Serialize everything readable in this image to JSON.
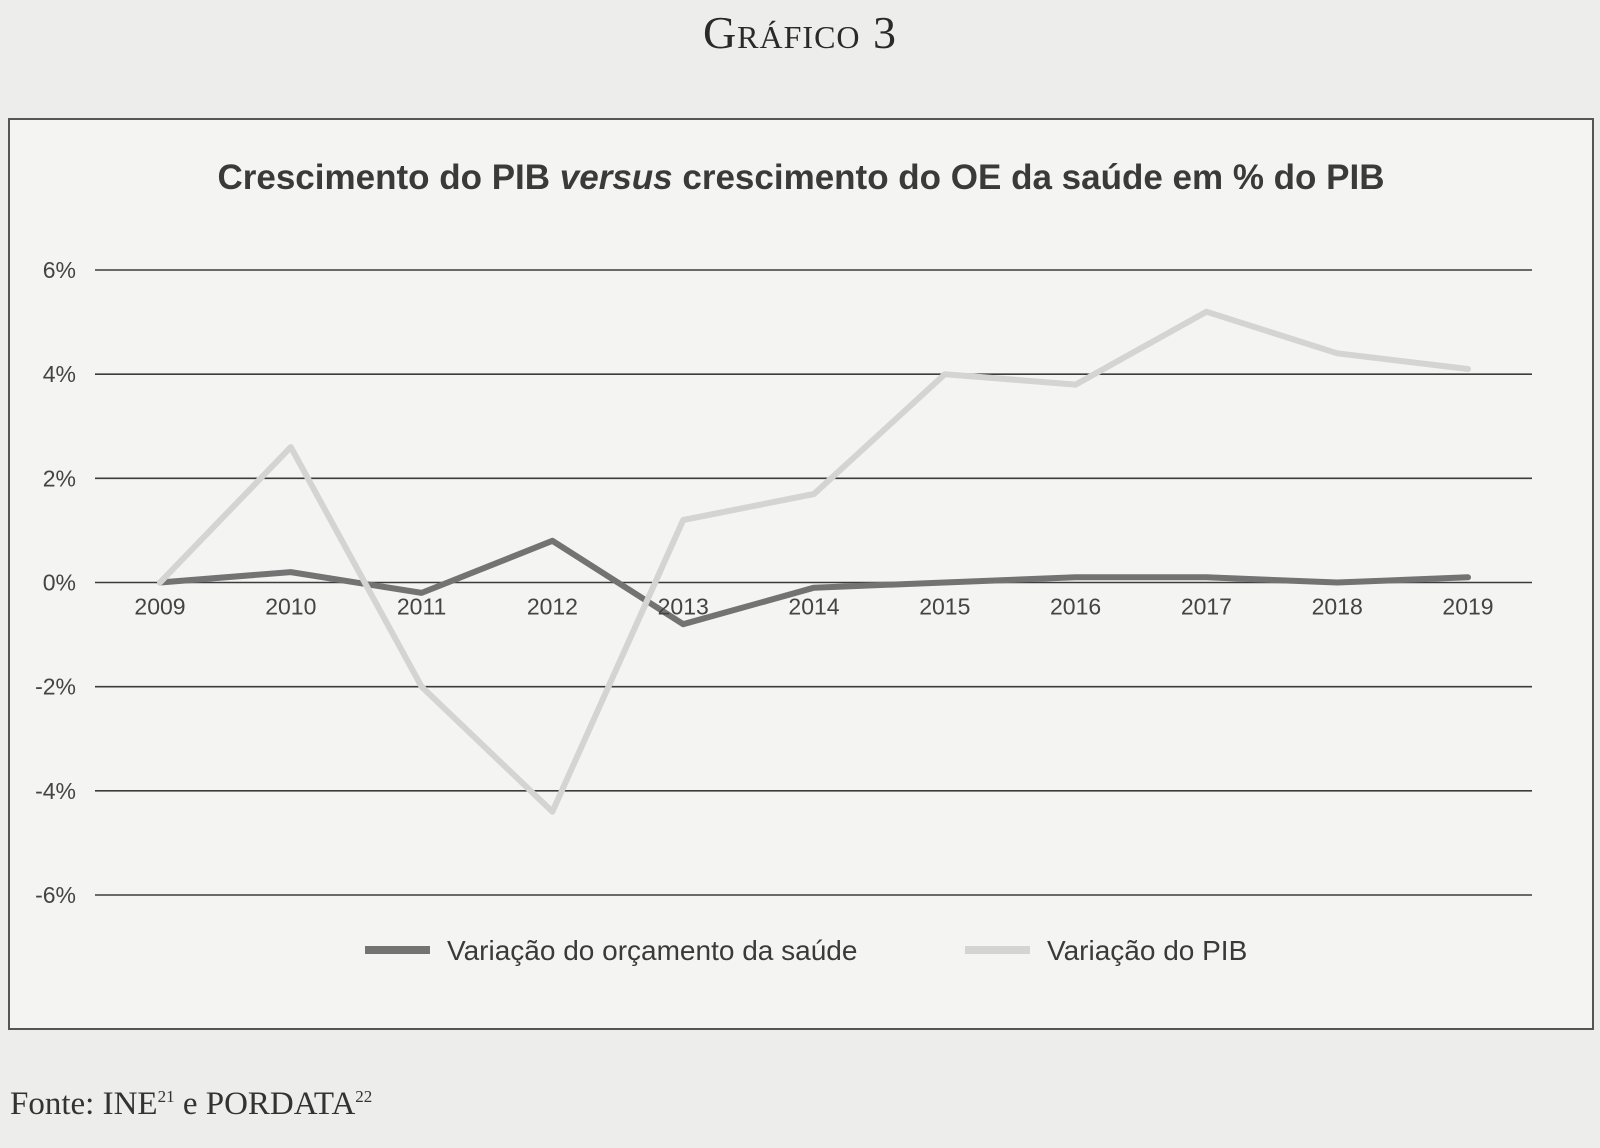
{
  "figure_label": "Gráfico 3",
  "source": {
    "prefix": "Fonte: ",
    "ine": "INE",
    "ine_ref": "21",
    "conj": " e ",
    "pordata": "PORDATA",
    "pordata_ref": "22"
  },
  "chart_data": {
    "type": "line",
    "title_part1": "Crescimento do PIB ",
    "title_italic": "versus",
    "title_part2": " crescimento do OE da saúde em % do PIB",
    "categories": [
      "2009",
      "2010",
      "2011",
      "2012",
      "2013",
      "2014",
      "2015",
      "2016",
      "2017",
      "2018",
      "2019"
    ],
    "y_ticks": [
      6,
      4,
      2,
      0,
      -2,
      -4,
      -6
    ],
    "y_tick_labels": [
      "6%",
      "4%",
      "2%",
      "0%",
      "-2%",
      "-4%",
      "-6%"
    ],
    "ylim": [
      -6,
      6
    ],
    "grid": true,
    "legend_position": "bottom",
    "series": [
      {
        "name": "Variação do orçamento da saúde",
        "color": "#737373",
        "values": [
          0.0,
          0.2,
          -0.2,
          0.8,
          -0.8,
          -0.1,
          0.0,
          0.1,
          0.1,
          0.0,
          0.1
        ]
      },
      {
        "name": "Variação do PIB",
        "color": "#d4d4d2",
        "values": [
          0.0,
          2.6,
          -2.0,
          -4.4,
          1.2,
          1.7,
          4.0,
          3.8,
          5.2,
          4.4,
          4.1
        ]
      }
    ]
  }
}
